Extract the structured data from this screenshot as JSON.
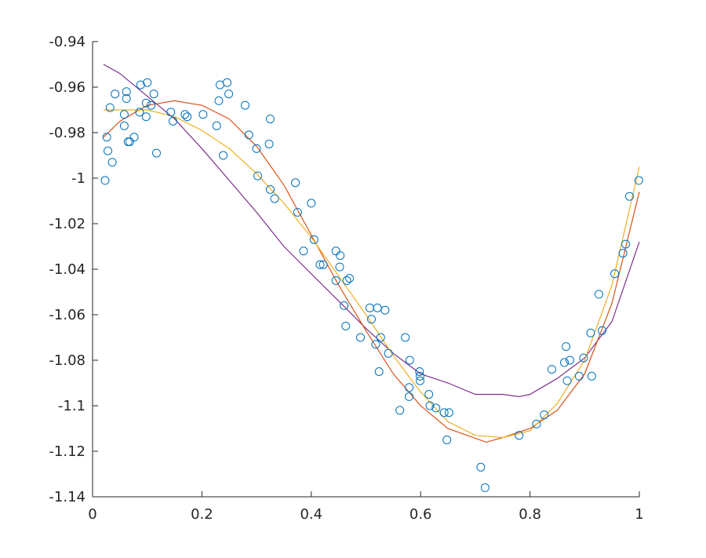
{
  "chart_data": {
    "type": "scatter",
    "title": "",
    "xlabel": "",
    "ylabel": "",
    "xlim": [
      0,
      1
    ],
    "ylim": [
      -1.14,
      -0.94
    ],
    "x_ticks": [
      "0",
      "0.2",
      "0.4",
      "0.6",
      "0.8",
      "1"
    ],
    "y_ticks": [
      "-0.94",
      "-0.96",
      "-0.98",
      "-1",
      "-1.02",
      "-1.04",
      "-1.06",
      "-1.08",
      "-1.1",
      "-1.12",
      "-1.14"
    ],
    "grid": false,
    "legend": "none",
    "marker_color": "#0072bd",
    "points": [
      [
        0.023,
        -1.001
      ],
      [
        0.026,
        -0.982
      ],
      [
        0.028,
        -0.988
      ],
      [
        0.032,
        -0.969
      ],
      [
        0.036,
        -0.993
      ],
      [
        0.041,
        -0.963
      ],
      [
        0.058,
        -0.972
      ],
      [
        0.058,
        -0.977
      ],
      [
        0.062,
        -0.962
      ],
      [
        0.062,
        -0.965
      ],
      [
        0.065,
        -0.984
      ],
      [
        0.068,
        -0.984
      ],
      [
        0.076,
        -0.982
      ],
      [
        0.086,
        -0.971
      ],
      [
        0.088,
        -0.959
      ],
      [
        0.098,
        -0.967
      ],
      [
        0.098,
        -0.973
      ],
      [
        0.1,
        -0.958
      ],
      [
        0.107,
        -0.968
      ],
      [
        0.112,
        -0.963
      ],
      [
        0.117,
        -0.989
      ],
      [
        0.143,
        -0.971
      ],
      [
        0.147,
        -0.975
      ],
      [
        0.169,
        -0.972
      ],
      [
        0.173,
        -0.973
      ],
      [
        0.202,
        -0.972
      ],
      [
        0.227,
        -0.977
      ],
      [
        0.231,
        -0.966
      ],
      [
        0.233,
        -0.959
      ],
      [
        0.239,
        -0.99
      ],
      [
        0.246,
        -0.958
      ],
      [
        0.249,
        -0.963
      ],
      [
        0.279,
        -0.968
      ],
      [
        0.286,
        -0.981
      ],
      [
        0.3,
        -0.987
      ],
      [
        0.302,
        -0.999
      ],
      [
        0.323,
        -0.985
      ],
      [
        0.325,
        -0.974
      ],
      [
        0.325,
        -1.005
      ],
      [
        0.333,
        -1.009
      ],
      [
        0.371,
        -1.002
      ],
      [
        0.375,
        -1.015
      ],
      [
        0.386,
        -1.032
      ],
      [
        0.4,
        -1.011
      ],
      [
        0.405,
        -1.027
      ],
      [
        0.416,
        -1.038
      ],
      [
        0.422,
        -1.038
      ],
      [
        0.445,
        -1.032
      ],
      [
        0.445,
        -1.045
      ],
      [
        0.452,
        -1.039
      ],
      [
        0.453,
        -1.034
      ],
      [
        0.46,
        -1.056
      ],
      [
        0.465,
        -1.045
      ],
      [
        0.463,
        -1.065
      ],
      [
        0.47,
        -1.044
      ],
      [
        0.49,
        -1.07
      ],
      [
        0.507,
        -1.057
      ],
      [
        0.51,
        -1.062
      ],
      [
        0.518,
        -1.073
      ],
      [
        0.521,
        -1.057
      ],
      [
        0.524,
        -1.085
      ],
      [
        0.527,
        -1.07
      ],
      [
        0.535,
        -1.058
      ],
      [
        0.541,
        -1.077
      ],
      [
        0.562,
        -1.102
      ],
      [
        0.572,
        -1.07
      ],
      [
        0.579,
        -1.092
      ],
      [
        0.58,
        -1.08
      ],
      [
        0.579,
        -1.096
      ],
      [
        0.598,
        -1.085
      ],
      [
        0.599,
        -1.087
      ],
      [
        0.599,
        -1.089
      ],
      [
        0.615,
        -1.095
      ],
      [
        0.617,
        -1.1
      ],
      [
        0.628,
        -1.101
      ],
      [
        0.643,
        -1.103
      ],
      [
        0.648,
        -1.115
      ],
      [
        0.652,
        -1.103
      ],
      [
        0.71,
        -1.127
      ],
      [
        0.718,
        -1.136
      ],
      [
        0.78,
        -1.113
      ],
      [
        0.812,
        -1.108
      ],
      [
        0.826,
        -1.104
      ],
      [
        0.84,
        -1.084
      ],
      [
        0.863,
        -1.081
      ],
      [
        0.866,
        -1.074
      ],
      [
        0.868,
        -1.089
      ],
      [
        0.873,
        -1.08
      ],
      [
        0.89,
        -1.087
      ],
      [
        0.898,
        -1.079
      ],
      [
        0.911,
        -1.068
      ],
      [
        0.913,
        -1.087
      ],
      [
        0.926,
        -1.051
      ],
      [
        0.932,
        -1.067
      ],
      [
        0.955,
        -1.042
      ],
      [
        0.97,
        -1.033
      ],
      [
        0.975,
        -1.029
      ],
      [
        0.982,
        -1.008
      ],
      [
        0.999,
        -1.001
      ]
    ],
    "series": [
      {
        "color": "#7e2f8e",
        "x": [
          0.02,
          0.05,
          0.1,
          0.15,
          0.2,
          0.25,
          0.3,
          0.35,
          0.4,
          0.45,
          0.5,
          0.55,
          0.6,
          0.65,
          0.7,
          0.75,
          0.78,
          0.8,
          0.85,
          0.9,
          0.95,
          1.0
        ],
        "y": [
          -0.95,
          -0.954,
          -0.964,
          -0.974,
          -0.987,
          -1.001,
          -1.015,
          -1.03,
          -1.042,
          -1.054,
          -1.066,
          -1.077,
          -1.086,
          -1.09,
          -1.095,
          -1.095,
          -1.096,
          -1.095,
          -1.088,
          -1.079,
          -1.063,
          -1.028
        ]
      },
      {
        "color": "#d95319",
        "x": [
          0.02,
          0.05,
          0.1,
          0.15,
          0.2,
          0.25,
          0.3,
          0.35,
          0.4,
          0.45,
          0.5,
          0.55,
          0.6,
          0.65,
          0.72,
          0.75,
          0.8,
          0.85,
          0.9,
          0.95,
          1.0
        ],
        "y": [
          -0.982,
          -0.975,
          -0.968,
          -0.966,
          -0.968,
          -0.974,
          -0.986,
          -1.003,
          -1.025,
          -1.047,
          -1.067,
          -1.086,
          -1.1,
          -1.11,
          -1.116,
          -1.114,
          -1.11,
          -1.102,
          -1.086,
          -1.055,
          -1.006
        ]
      },
      {
        "color": "#edb120",
        "x": [
          0.02,
          0.05,
          0.1,
          0.15,
          0.2,
          0.25,
          0.3,
          0.35,
          0.4,
          0.45,
          0.5,
          0.55,
          0.6,
          0.65,
          0.7,
          0.75,
          0.8,
          0.85,
          0.9,
          0.95,
          1.0
        ],
        "y": [
          -0.97,
          -0.97,
          -0.97,
          -0.973,
          -0.979,
          -0.987,
          -0.998,
          -1.011,
          -1.026,
          -1.043,
          -1.06,
          -1.078,
          -1.094,
          -1.107,
          -1.113,
          -1.114,
          -1.111,
          -1.099,
          -1.08,
          -1.047,
          -0.995
        ]
      }
    ]
  }
}
